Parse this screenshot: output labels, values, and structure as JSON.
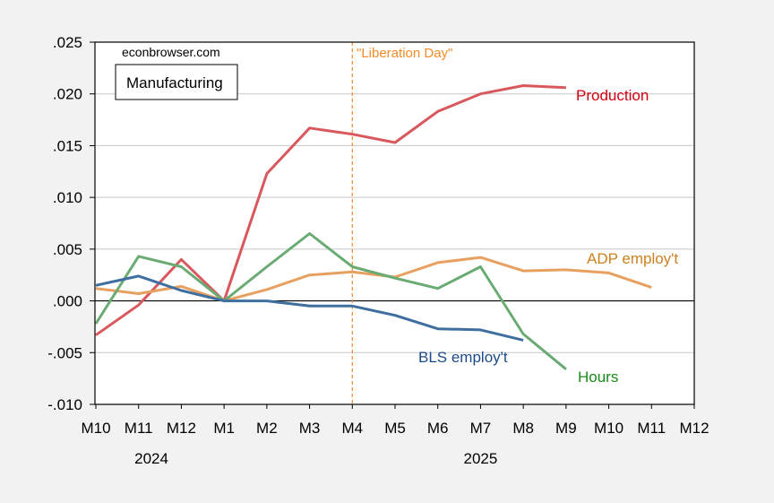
{
  "chart_data": {
    "type": "line",
    "title": "",
    "xlabel": "",
    "ylabel": "",
    "watermark": "econbrowser.com",
    "legend_box": "Manufacturing",
    "x": [
      "M10",
      "M11",
      "M12",
      "M1",
      "M2",
      "M3",
      "M4",
      "M5",
      "M6",
      "M7",
      "M8",
      "M9",
      "M10",
      "M11",
      "M12"
    ],
    "year_labels": [
      {
        "label": "2024",
        "at_index": 1.3
      },
      {
        "label": "2025",
        "at_index": 9.0
      }
    ],
    "ylim": [
      -0.01,
      0.025
    ],
    "yticks": [
      -0.01,
      -0.005,
      0.0,
      0.005,
      0.01,
      0.015,
      0.02,
      0.025
    ],
    "ytick_labels": [
      "-.010",
      "-.005",
      ".000",
      ".005",
      ".010",
      ".015",
      ".020",
      ".025"
    ],
    "grid": true,
    "annotation": {
      "label": "\"Liberation Day\"",
      "at_index": 6,
      "color": "#f08c28"
    },
    "series": [
      {
        "name": "Production",
        "color": "#d9585e",
        "label_color": "#d2000f",
        "values": [
          -0.0033,
          -0.0004,
          0.004,
          0.0,
          0.0123,
          0.0167,
          0.0161,
          0.0153,
          0.0183,
          0.02,
          0.0208,
          0.0206,
          null,
          null,
          null
        ]
      },
      {
        "name": "ADP employ't",
        "color": "#e8a060",
        "label_color": "#cc8020",
        "values": [
          0.0012,
          0.0007,
          0.0014,
          0.0,
          0.0011,
          0.0025,
          0.0028,
          0.0023,
          0.0037,
          0.0042,
          0.0029,
          0.003,
          0.0027,
          0.0013,
          null
        ]
      },
      {
        "name": "Hours",
        "color": "#6aab74",
        "label_color": "#1a8a1a",
        "values": [
          -0.0022,
          0.0043,
          0.0033,
          0.0,
          0.0033,
          0.0065,
          0.0033,
          0.0022,
          0.0012,
          0.0033,
          -0.0032,
          -0.0066,
          null,
          null,
          null
        ]
      },
      {
        "name": "BLS employ't",
        "color": "#3f6fa0",
        "label_color": "#1c4a8a",
        "values": [
          0.0015,
          0.0024,
          0.001,
          0.0,
          0.0,
          -0.0005,
          -0.0005,
          -0.0014,
          -0.0027,
          -0.0028,
          -0.0038,
          null,
          null,
          null,
          null
        ]
      }
    ]
  }
}
